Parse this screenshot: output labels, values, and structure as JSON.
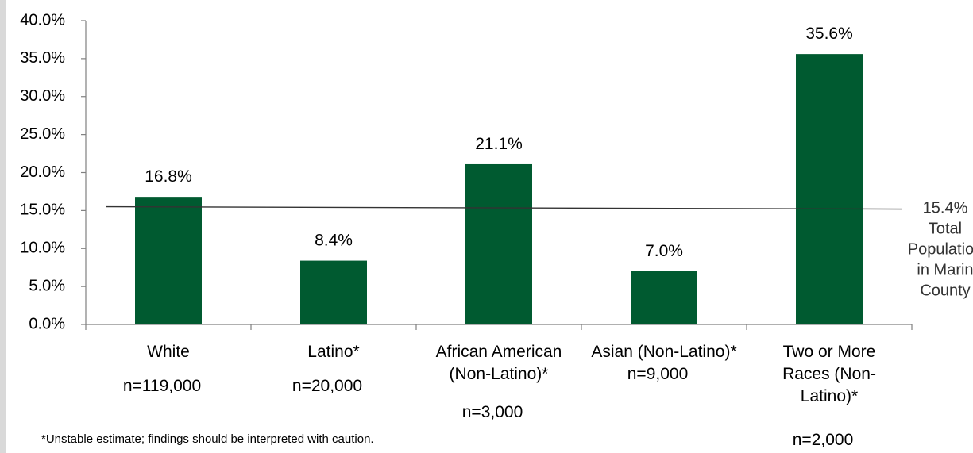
{
  "chart_data": {
    "type": "bar",
    "categories": [
      [
        "White"
      ],
      [
        "Latino*"
      ],
      [
        "African American",
        "(Non-Latino)*"
      ],
      [
        "Asian (Non-Latino)*"
      ],
      [
        "Two or More",
        "Races  (Non-",
        "Latino)*"
      ]
    ],
    "values": [
      16.8,
      8.4,
      21.1,
      7.0,
      35.6
    ],
    "value_labels": [
      "16.8%",
      "8.4%",
      "21.1%",
      "7.0%",
      "35.6%"
    ],
    "sample_sizes": [
      "n=119,000",
      "n=20,000",
      "n=3,000",
      "n=9,000",
      "n=2,000"
    ],
    "yticks": [
      "0.0%",
      "5.0%",
      "10.0%",
      "15.0%",
      "20.0%",
      "25.0%",
      "30.0%",
      "35.0%",
      "40.0%"
    ],
    "ylim": [
      0,
      40
    ],
    "bar_color": "#005a30",
    "reference_line": {
      "value": 15.4,
      "label": [
        "15.4%",
        "Total",
        "Population",
        "in Marin",
        "County"
      ]
    },
    "title": "",
    "xlabel": "",
    "ylabel": "",
    "grid": false,
    "legend": "none"
  },
  "footnote": "*Unstable estimate; findings should be interpreted with caution."
}
